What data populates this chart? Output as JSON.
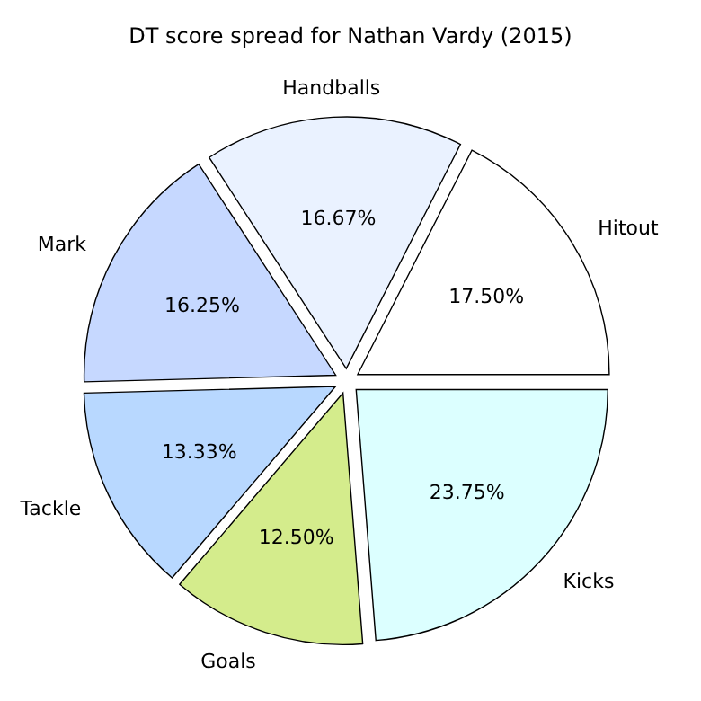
{
  "chart_data": {
    "type": "pie",
    "title": "DT score spread for Nathan Vardy (2015)",
    "categories": [
      "Hitout",
      "Handballs",
      "Mark",
      "Tackle",
      "Goals",
      "Kicks"
    ],
    "values": [
      17.5,
      16.67,
      16.25,
      13.33,
      12.5,
      23.75
    ],
    "colors": [
      "#ffffff",
      "#eaf2ff",
      "#c6d8ff",
      "#b8d8ff",
      "#d4ec8c",
      "#dcffff"
    ],
    "value_labels": [
      "17.50%",
      "16.67%",
      "16.25%",
      "13.33%",
      "12.50%",
      "23.75%"
    ]
  }
}
